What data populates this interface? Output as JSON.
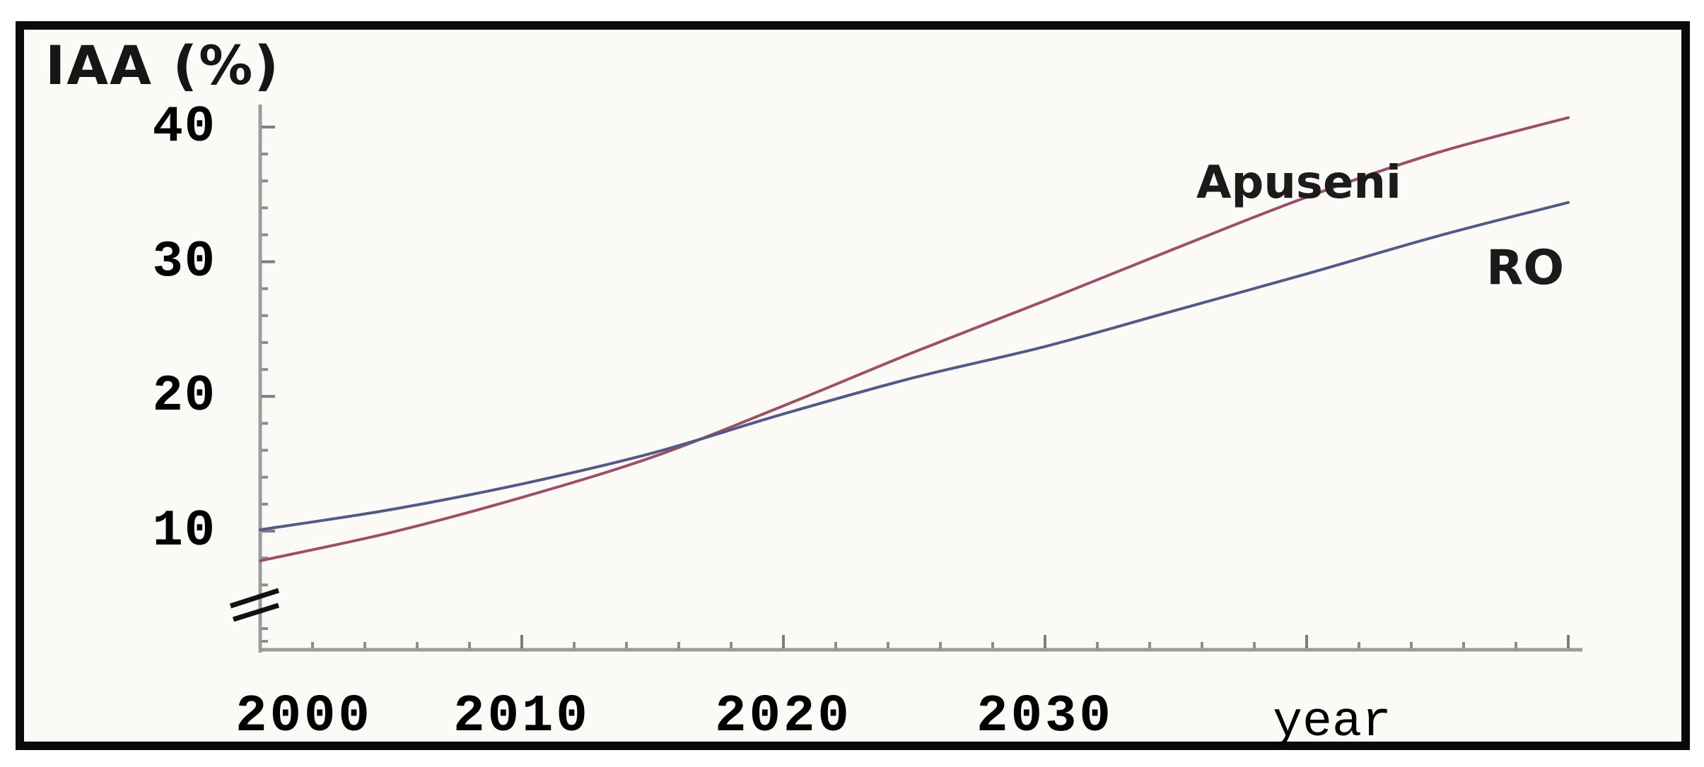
{
  "chart_data": {
    "type": "line",
    "title": "IAA (%)",
    "xlabel": "year",
    "x_tick_labels": [
      "2000",
      "2010",
      "2020",
      "2030"
    ],
    "y_tick_labels": [
      "40",
      "30",
      "20",
      "10"
    ],
    "y_ticks_labeled": [
      40,
      30,
      20,
      10
    ],
    "x_range": [
      2000,
      2050
    ],
    "y_range_shown": [
      5,
      41.5
    ],
    "axis_break_on_y_axis": true,
    "grid": false,
    "legend_position": "labels-at-line-end",
    "x": [
      2000,
      2005,
      2010,
      2015,
      2020,
      2025,
      2030,
      2035,
      2040,
      2045,
      2050
    ],
    "series": [
      {
        "name": "Apuseni",
        "color": "#9c5068",
        "values": [
          7.8,
          9.9,
          12.5,
          15.5,
          19.3,
          23.3,
          27.1,
          31.0,
          34.8,
          38.1,
          40.7
        ]
      },
      {
        "name": "RO",
        "color": "#545a86",
        "values": [
          10.1,
          11.6,
          13.5,
          15.8,
          18.7,
          21.4,
          23.7,
          26.4,
          29.1,
          31.9,
          34.4
        ]
      }
    ],
    "colors": {
      "axis": "#9c9c9c",
      "minor_tick": "#8d8d8d",
      "major_tick": "#7d7d7d",
      "break_marks": "#111111",
      "text": "#101010",
      "frame": "#0a0a0a",
      "background": "#fbfaf6"
    }
  }
}
